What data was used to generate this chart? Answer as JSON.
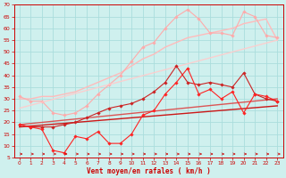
{
  "bg_color": "#cff0ee",
  "grid_color": "#aadddd",
  "xlabel": "Vent moyen/en rafales ( km/h )",
  "xlabel_color": "#cc0000",
  "tick_color": "#cc0000",
  "xlim": [
    -0.5,
    23.5
  ],
  "ylim": [
    5,
    70
  ],
  "yticks": [
    5,
    10,
    15,
    20,
    25,
    30,
    35,
    40,
    45,
    50,
    55,
    60,
    65,
    70
  ],
  "xticks": [
    0,
    1,
    2,
    3,
    4,
    5,
    6,
    7,
    8,
    9,
    10,
    11,
    12,
    13,
    14,
    15,
    16,
    17,
    18,
    19,
    20,
    21,
    22,
    23
  ],
  "lines": [
    {
      "x": [
        0,
        1,
        2,
        3,
        4,
        5,
        6,
        7,
        8,
        9,
        10,
        11,
        12,
        13,
        14,
        15,
        16,
        17,
        18,
        19,
        20,
        21,
        22,
        23
      ],
      "y": [
        30,
        30,
        31,
        31,
        32,
        33,
        35,
        37,
        39,
        41,
        44,
        47,
        49,
        52,
        54,
        56,
        57,
        58,
        59,
        60,
        62,
        63,
        64,
        55
      ],
      "color": "#ffbbbb",
      "lw": 1.0,
      "marker": null,
      "alpha": 1.0
    },
    {
      "x": [
        0,
        1,
        2,
        3,
        4,
        5,
        6,
        7,
        8,
        9,
        10,
        11,
        12,
        13,
        14,
        15,
        16,
        17,
        18,
        19,
        20,
        21,
        22,
        23
      ],
      "y": [
        31,
        29,
        29,
        24,
        23,
        24,
        27,
        32,
        36,
        40,
        46,
        52,
        54,
        60,
        65,
        68,
        64,
        58,
        58,
        57,
        67,
        65,
        57,
        56
      ],
      "color": "#ffaaaa",
      "lw": 0.8,
      "marker": "D",
      "markersize": 1.8,
      "alpha": 1.0
    },
    {
      "x": [
        0,
        23
      ],
      "y": [
        26,
        55
      ],
      "color": "#ffcccc",
      "lw": 1.0,
      "marker": null,
      "alpha": 0.9
    },
    {
      "x": [
        0,
        23
      ],
      "y": [
        19,
        30
      ],
      "color": "#dd4444",
      "lw": 1.0,
      "marker": null,
      "alpha": 0.9
    },
    {
      "x": [
        0,
        23
      ],
      "y": [
        18,
        27
      ],
      "color": "#cc0000",
      "lw": 1.0,
      "marker": null,
      "alpha": 0.9
    },
    {
      "x": [
        0,
        1,
        2,
        3,
        4,
        5,
        6,
        7,
        8,
        9,
        10,
        11,
        12,
        13,
        14,
        15,
        16,
        17,
        18,
        19,
        20,
        21,
        22,
        23
      ],
      "y": [
        19,
        18,
        18,
        18,
        19,
        20,
        22,
        24,
        26,
        27,
        28,
        30,
        33,
        37,
        44,
        37,
        36,
        37,
        36,
        35,
        41,
        32,
        30,
        29
      ],
      "color": "#cc2222",
      "lw": 0.8,
      "marker": "D",
      "markersize": 1.8,
      "alpha": 1.0
    },
    {
      "x": [
        0,
        1,
        2,
        3,
        4,
        5,
        6,
        7,
        8,
        9,
        10,
        11,
        12,
        13,
        14,
        15,
        16,
        17,
        18,
        19,
        20,
        21,
        22,
        23
      ],
      "y": [
        19,
        18,
        17,
        8,
        7,
        14,
        13,
        16,
        11,
        11,
        15,
        23,
        25,
        32,
        37,
        43,
        32,
        34,
        30,
        33,
        24,
        32,
        31,
        29
      ],
      "color": "#ff2222",
      "lw": 0.8,
      "marker": "D",
      "markersize": 1.8,
      "alpha": 1.0
    }
  ],
  "wind_arrows": {
    "y_data": 6.5,
    "color": "#cc0000"
  }
}
